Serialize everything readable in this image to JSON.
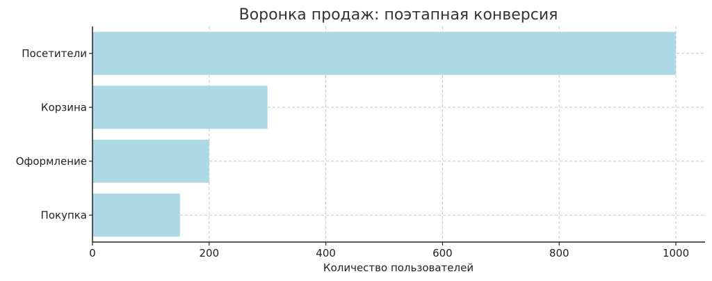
{
  "chart_data": {
    "type": "bar",
    "orientation": "horizontal",
    "title": "Воронка продаж: поэтапная конверсия",
    "xlabel": "Количество пользователей",
    "ylabel": "",
    "categories": [
      "Посетители",
      "Корзина",
      "Оформление",
      "Покупка"
    ],
    "values": [
      1000,
      300,
      200,
      150
    ],
    "xlim": [
      0,
      1050
    ],
    "xticks": [
      0,
      200,
      400,
      600,
      800,
      1000
    ],
    "grid": true,
    "bar_color": "#add8e6"
  }
}
